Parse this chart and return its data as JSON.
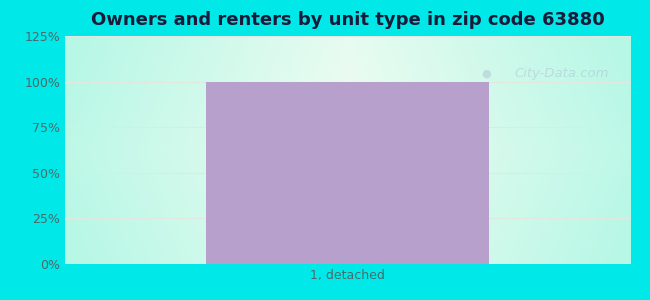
{
  "title": "Owners and renters by unit type in zip code 63880",
  "categories": [
    "1, detached"
  ],
  "values": [
    100
  ],
  "bar_color": "#b8a0cc",
  "bar_width": 0.5,
  "ylim": [
    0,
    125
  ],
  "yticks": [
    0,
    25,
    50,
    75,
    100,
    125
  ],
  "ytick_labels": [
    "0%",
    "25%",
    "50%",
    "75%",
    "100%",
    "125%"
  ],
  "title_fontsize": 13,
  "tick_fontsize": 9,
  "xlabel_fontsize": 9,
  "bg_outer_color": "#00e8e8",
  "watermark_text": "City-Data.com",
  "watermark_color": "#aabbcc",
  "watermark_alpha": 0.45,
  "grid_color": "#e0e8e0",
  "title_color": "#1a1a3a"
}
